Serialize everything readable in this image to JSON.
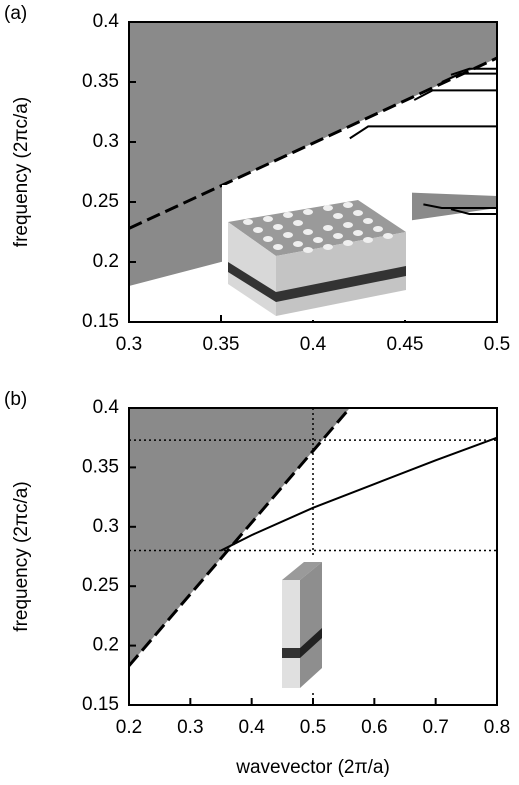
{
  "chart_data": [
    {
      "type": "line",
      "label": "(a)",
      "ylabel": "frequency (2πc/a)",
      "xlim": [
        0.3,
        0.5
      ],
      "ylim": [
        0.15,
        0.4
      ],
      "xticks": [
        0.3,
        0.35,
        0.4,
        0.45,
        0.5
      ],
      "yticks": [
        0.15,
        0.2,
        0.25,
        0.3,
        0.35,
        0.4
      ],
      "regions": [
        {
          "color": "#8a8a8a",
          "x": [
            0.3,
            0.3,
            0.5,
            0.5
          ],
          "y": [
            0.228,
            0.4,
            0.4,
            0.37
          ]
        },
        {
          "color": "#8a8a8a",
          "x": [
            0.3,
            0.35,
            0.4,
            0.45,
            0.5,
            0.5,
            0.45,
            0.4,
            0.35,
            0.3
          ],
          "y": [
            0.18,
            0.2,
            0.218,
            0.234,
            0.245,
            0.255,
            0.258,
            0.262,
            0.264,
            0.228
          ]
        }
      ],
      "series": [
        {
          "color": "#000000",
          "dashed": true,
          "x": [
            0.3,
            0.5
          ],
          "values": [
            0.228,
            0.37
          ]
        },
        {
          "color": "#000000",
          "dashed": false,
          "x": [
            0.42,
            0.43,
            0.5
          ],
          "values": [
            0.303,
            0.313,
            0.313
          ]
        },
        {
          "color": "#000000",
          "dashed": false,
          "x": [
            0.455,
            0.465,
            0.5
          ],
          "values": [
            0.335,
            0.343,
            0.343
          ]
        },
        {
          "color": "#000000",
          "dashed": false,
          "x": [
            0.47,
            0.48,
            0.5
          ],
          "values": [
            0.35,
            0.357,
            0.357
          ]
        },
        {
          "color": "#000000",
          "dashed": false,
          "x": [
            0.475,
            0.485,
            0.5
          ],
          "values": [
            0.356,
            0.361,
            0.361
          ]
        },
        {
          "color": "#000000",
          "dashed": false,
          "x": [
            0.46,
            0.47,
            0.5
          ],
          "values": [
            0.248,
            0.245,
            0.245
          ]
        },
        {
          "color": "#000000",
          "dashed": false,
          "x": [
            0.475,
            0.485,
            0.5
          ],
          "values": [
            0.244,
            0.24,
            0.24
          ]
        }
      ]
    },
    {
      "type": "line",
      "label": "(b)",
      "ylabel": "frequency (2πc/a)",
      "xlabel": "wavevector (2π/a)",
      "xlim": [
        0.2,
        0.8
      ],
      "ylim": [
        0.15,
        0.4
      ],
      "xticks": [
        0.2,
        0.3,
        0.4,
        0.5,
        0.6,
        0.7,
        0.8
      ],
      "yticks": [
        0.15,
        0.2,
        0.25,
        0.3,
        0.35,
        0.4
      ],
      "regions": [
        {
          "color": "#8a8a8a",
          "x": [
            0.2,
            0.2,
            0.56
          ],
          "y": [
            0.183,
            0.4,
            0.4
          ]
        }
      ],
      "hlines": [
        0.28,
        0.373
      ],
      "vlines": [
        0.5
      ],
      "series": [
        {
          "color": "#000000",
          "dashed": true,
          "x": [
            0.2,
            0.56
          ],
          "values": [
            0.183,
            0.4
          ]
        },
        {
          "color": "#000000",
          "dashed": false,
          "x": [
            0.35,
            0.4,
            0.5,
            0.6,
            0.7,
            0.8
          ],
          "values": [
            0.28,
            0.293,
            0.316,
            0.336,
            0.356,
            0.375
          ]
        }
      ]
    }
  ]
}
